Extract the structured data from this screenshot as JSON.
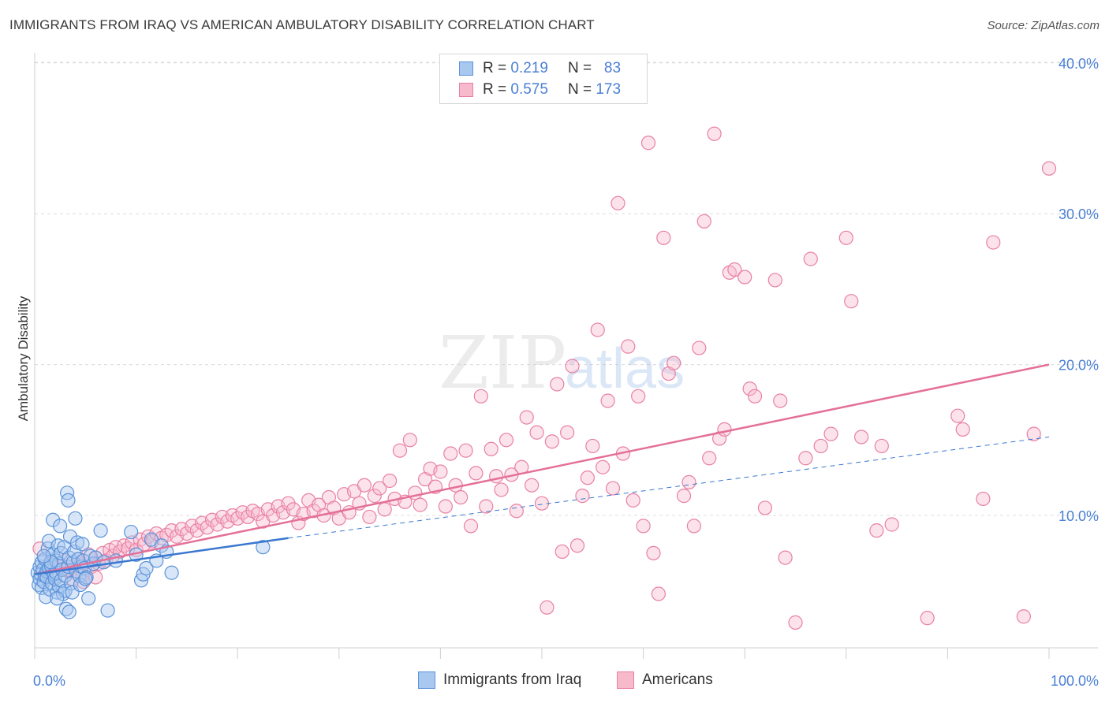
{
  "title": "IMMIGRANTS FROM IRAQ VS AMERICAN AMBULATORY DISABILITY CORRELATION CHART",
  "source": "Source: ZipAtlas.com",
  "watermark": {
    "zip": "ZIP",
    "atlas": "atlas"
  },
  "legend": {
    "rows": [
      {
        "r_label": "R =",
        "r_value": "0.219",
        "n_label": "N =",
        "n_value": "83"
      },
      {
        "r_label": "R =",
        "r_value": "0.575",
        "n_label": "N =",
        "n_value": "173"
      }
    ]
  },
  "bottom_legend": {
    "series1": "Immigrants from Iraq",
    "series2": "Americans"
  },
  "colors": {
    "iraq_fill": "#a9c8f0",
    "iraq_stroke": "#5b93d9",
    "iraq_line": "#3a78d0",
    "americans_fill": "#f7b9cc",
    "americans_stroke": "#e880a3",
    "americans_line": "#e4709a",
    "tick": "#4a7fd4",
    "grid": "#dcdcdc"
  },
  "chart_data": {
    "type": "scatter",
    "title": "IMMIGRANTS FROM IRAQ VS AMERICAN AMBULATORY DISABILITY CORRELATION CHART",
    "xlabel": "",
    "ylabel": "Ambulatory Disability",
    "xlim": [
      0,
      100
    ],
    "ylim": [
      0,
      42
    ],
    "x_tick_labels": [
      "0.0%",
      "100.0%"
    ],
    "y_ticks": [
      10,
      20,
      30,
      40
    ],
    "y_tick_labels": [
      "10.0%",
      "20.0%",
      "30.0%",
      "40.0%"
    ],
    "series": [
      {
        "name": "Immigrants from Iraq",
        "r": 0.219,
        "n": 83,
        "trend": {
          "x": [
            0,
            25
          ],
          "y": [
            6.1,
            8.5
          ]
        },
        "trend_extension": {
          "x": [
            25,
            100
          ],
          "y": [
            8.5,
            15.2
          ]
        },
        "points": [
          [
            0.3,
            6.2
          ],
          [
            0.4,
            5.4
          ],
          [
            0.5,
            6.6
          ],
          [
            0.5,
            5.8
          ],
          [
            0.6,
            6.1
          ],
          [
            0.7,
            5.2
          ],
          [
            0.7,
            6.9
          ],
          [
            0.8,
            6.4
          ],
          [
            0.9,
            5.6
          ],
          [
            1.0,
            6.0
          ],
          [
            1.0,
            7.1
          ],
          [
            1.1,
            4.6
          ],
          [
            1.2,
            6.3
          ],
          [
            1.2,
            5.9
          ],
          [
            1.3,
            7.8
          ],
          [
            1.4,
            8.3
          ],
          [
            1.4,
            6.5
          ],
          [
            1.5,
            5.1
          ],
          [
            1.6,
            6.7
          ],
          [
            1.7,
            5.5
          ],
          [
            1.8,
            7.4
          ],
          [
            1.8,
            9.7
          ],
          [
            1.9,
            6.1
          ],
          [
            2.0,
            5.8
          ],
          [
            2.1,
            7.0
          ],
          [
            2.1,
            6.2
          ],
          [
            2.2,
            4.9
          ],
          [
            2.3,
            8.0
          ],
          [
            2.4,
            5.3
          ],
          [
            2.4,
            6.8
          ],
          [
            2.5,
            9.3
          ],
          [
            2.6,
            7.5
          ],
          [
            2.6,
            5.7
          ],
          [
            2.7,
            6.4
          ],
          [
            2.8,
            4.8
          ],
          [
            2.9,
            7.9
          ],
          [
            3.0,
            6.0
          ],
          [
            3.0,
            5.0
          ],
          [
            3.1,
            3.8
          ],
          [
            3.2,
            11.5
          ],
          [
            3.3,
            11.0
          ],
          [
            3.3,
            6.6
          ],
          [
            3.4,
            7.2
          ],
          [
            3.5,
            8.6
          ],
          [
            3.6,
            5.5
          ],
          [
            3.7,
            4.9
          ],
          [
            3.8,
            6.9
          ],
          [
            3.9,
            7.6
          ],
          [
            4.0,
            9.8
          ],
          [
            4.1,
            6.3
          ],
          [
            4.2,
            8.2
          ],
          [
            4.3,
            7.1
          ],
          [
            4.4,
            6.0
          ],
          [
            4.5,
            5.4
          ],
          [
            4.6,
            6.6
          ],
          [
            4.7,
            8.1
          ],
          [
            4.8,
            7.0
          ],
          [
            4.9,
            6.5
          ],
          [
            5.1,
            5.9
          ],
          [
            5.3,
            4.5
          ],
          [
            5.5,
            7.3
          ],
          [
            5.8,
            6.8
          ],
          [
            6.0,
            7.2
          ],
          [
            6.5,
            9.0
          ],
          [
            6.8,
            6.9
          ],
          [
            7.2,
            3.7
          ],
          [
            8.0,
            7.0
          ],
          [
            9.5,
            8.9
          ],
          [
            10.0,
            7.4
          ],
          [
            10.5,
            5.7
          ],
          [
            10.7,
            6.1
          ],
          [
            11.0,
            6.5
          ],
          [
            11.5,
            8.4
          ],
          [
            12.0,
            7.0
          ],
          [
            12.5,
            8.0
          ],
          [
            13.0,
            7.6
          ],
          [
            13.5,
            6.2
          ],
          [
            2.2,
            4.5
          ],
          [
            1.6,
            6.9
          ],
          [
            0.9,
            7.3
          ],
          [
            3.4,
            3.6
          ],
          [
            5.0,
            5.8
          ],
          [
            22.5,
            7.9
          ]
        ]
      },
      {
        "name": "Americans",
        "r": 0.575,
        "n": 173,
        "trend": {
          "x": [
            0,
            100
          ],
          "y": [
            6.1,
            20.0
          ]
        },
        "points": [
          [
            0.5,
            7.8
          ],
          [
            1.0,
            6.2
          ],
          [
            1.5,
            6.8
          ],
          [
            2.0,
            5.9
          ],
          [
            2.5,
            6.6
          ],
          [
            3.0,
            7.0
          ],
          [
            3.3,
            6.3
          ],
          [
            3.7,
            5.8
          ],
          [
            4.0,
            6.7
          ],
          [
            4.3,
            7.1
          ],
          [
            4.7,
            6.0
          ],
          [
            5.0,
            6.9
          ],
          [
            5.3,
            7.4
          ],
          [
            5.6,
            6.6
          ],
          [
            6.0,
            7.2
          ],
          [
            6.3,
            6.8
          ],
          [
            6.7,
            7.5
          ],
          [
            7.0,
            7.0
          ],
          [
            7.4,
            7.7
          ],
          [
            7.7,
            7.3
          ],
          [
            8.0,
            7.9
          ],
          [
            8.4,
            7.6
          ],
          [
            8.8,
            8.0
          ],
          [
            9.2,
            7.8
          ],
          [
            9.6,
            8.2
          ],
          [
            10.0,
            7.7
          ],
          [
            10.4,
            8.4
          ],
          [
            10.8,
            8.1
          ],
          [
            11.2,
            8.6
          ],
          [
            11.6,
            8.3
          ],
          [
            12.0,
            8.8
          ],
          [
            12.5,
            8.5
          ],
          [
            13.0,
            8.7
          ],
          [
            13.5,
            9.0
          ],
          [
            14.0,
            8.6
          ],
          [
            14.5,
            9.1
          ],
          [
            15.0,
            8.8
          ],
          [
            15.5,
            9.3
          ],
          [
            16.0,
            9.0
          ],
          [
            16.5,
            9.5
          ],
          [
            17.0,
            9.2
          ],
          [
            17.5,
            9.7
          ],
          [
            18.0,
            9.4
          ],
          [
            18.5,
            9.9
          ],
          [
            19.0,
            9.6
          ],
          [
            19.5,
            10.0
          ],
          [
            20.0,
            9.8
          ],
          [
            20.5,
            10.2
          ],
          [
            21.0,
            9.9
          ],
          [
            21.5,
            10.3
          ],
          [
            22.0,
            10.1
          ],
          [
            22.5,
            9.6
          ],
          [
            23.0,
            10.4
          ],
          [
            23.5,
            10.0
          ],
          [
            24.0,
            10.6
          ],
          [
            24.5,
            10.2
          ],
          [
            25.0,
            10.8
          ],
          [
            25.5,
            10.4
          ],
          [
            26.0,
            9.5
          ],
          [
            26.5,
            10.1
          ],
          [
            27.0,
            11.0
          ],
          [
            27.5,
            10.3
          ],
          [
            28.0,
            10.7
          ],
          [
            28.5,
            10.0
          ],
          [
            29.0,
            11.2
          ],
          [
            29.5,
            10.5
          ],
          [
            30.0,
            9.8
          ],
          [
            30.5,
            11.4
          ],
          [
            31.0,
            10.2
          ],
          [
            31.5,
            11.6
          ],
          [
            32.0,
            10.8
          ],
          [
            32.5,
            12.0
          ],
          [
            33.0,
            9.9
          ],
          [
            33.5,
            11.3
          ],
          [
            34.0,
            11.8
          ],
          [
            34.5,
            10.4
          ],
          [
            35.0,
            12.3
          ],
          [
            35.5,
            11.1
          ],
          [
            36.0,
            14.3
          ],
          [
            36.5,
            10.9
          ],
          [
            37.0,
            15.0
          ],
          [
            37.5,
            11.5
          ],
          [
            38.0,
            10.7
          ],
          [
            38.5,
            12.4
          ],
          [
            39.0,
            13.1
          ],
          [
            39.5,
            11.9
          ],
          [
            40.0,
            12.9
          ],
          [
            40.5,
            10.6
          ],
          [
            41.0,
            14.1
          ],
          [
            41.5,
            12.0
          ],
          [
            42.0,
            11.2
          ],
          [
            42.5,
            14.3
          ],
          [
            43.0,
            9.3
          ],
          [
            43.5,
            12.8
          ],
          [
            44.0,
            17.9
          ],
          [
            44.5,
            10.6
          ],
          [
            45.0,
            14.4
          ],
          [
            45.5,
            12.6
          ],
          [
            46.0,
            11.7
          ],
          [
            46.5,
            15.0
          ],
          [
            47.0,
            12.7
          ],
          [
            47.5,
            10.3
          ],
          [
            48.0,
            13.2
          ],
          [
            48.5,
            16.5
          ],
          [
            49.0,
            12.0
          ],
          [
            49.5,
            15.5
          ],
          [
            50.0,
            10.8
          ],
          [
            50.5,
            3.9
          ],
          [
            51.0,
            14.9
          ],
          [
            51.5,
            18.7
          ],
          [
            52.0,
            7.6
          ],
          [
            52.5,
            15.5
          ],
          [
            53.0,
            19.9
          ],
          [
            53.5,
            8.0
          ],
          [
            54.0,
            11.3
          ],
          [
            54.5,
            12.5
          ],
          [
            55.0,
            14.6
          ],
          [
            55.5,
            22.3
          ],
          [
            56.0,
            13.2
          ],
          [
            56.5,
            17.6
          ],
          [
            57.0,
            11.8
          ],
          [
            57.5,
            30.7
          ],
          [
            58.0,
            14.1
          ],
          [
            58.5,
            21.2
          ],
          [
            59.0,
            11.0
          ],
          [
            59.5,
            17.9
          ],
          [
            60.0,
            9.3
          ],
          [
            60.5,
            34.7
          ],
          [
            61.0,
            7.5
          ],
          [
            61.5,
            4.8
          ],
          [
            62.0,
            28.4
          ],
          [
            62.5,
            19.4
          ],
          [
            63.0,
            20.1
          ],
          [
            64.0,
            11.3
          ],
          [
            64.5,
            12.2
          ],
          [
            65.0,
            9.3
          ],
          [
            65.5,
            21.1
          ],
          [
            66.0,
            29.5
          ],
          [
            66.5,
            13.8
          ],
          [
            67.0,
            35.3
          ],
          [
            67.5,
            15.1
          ],
          [
            68.0,
            15.7
          ],
          [
            68.5,
            26.1
          ],
          [
            69.0,
            26.3
          ],
          [
            70.0,
            25.8
          ],
          [
            70.5,
            18.4
          ],
          [
            71.0,
            17.9
          ],
          [
            72.0,
            10.5
          ],
          [
            73.0,
            25.6
          ],
          [
            73.5,
            17.6
          ],
          [
            74.0,
            7.2
          ],
          [
            75.0,
            2.9
          ],
          [
            76.0,
            13.8
          ],
          [
            76.5,
            27.0
          ],
          [
            77.5,
            14.6
          ],
          [
            78.5,
            15.4
          ],
          [
            80.0,
            28.4
          ],
          [
            80.5,
            24.2
          ],
          [
            81.5,
            15.2
          ],
          [
            83.0,
            9.0
          ],
          [
            83.5,
            14.6
          ],
          [
            84.5,
            9.4
          ],
          [
            88.0,
            3.2
          ],
          [
            91.0,
            16.6
          ],
          [
            91.5,
            15.7
          ],
          [
            93.5,
            11.1
          ],
          [
            94.5,
            28.1
          ],
          [
            97.5,
            3.3
          ],
          [
            98.5,
            15.4
          ],
          [
            100.0,
            33.0
          ],
          [
            6.0,
            5.9
          ],
          [
            4.8,
            5.6
          ],
          [
            3.2,
            6.4
          ]
        ]
      }
    ]
  }
}
